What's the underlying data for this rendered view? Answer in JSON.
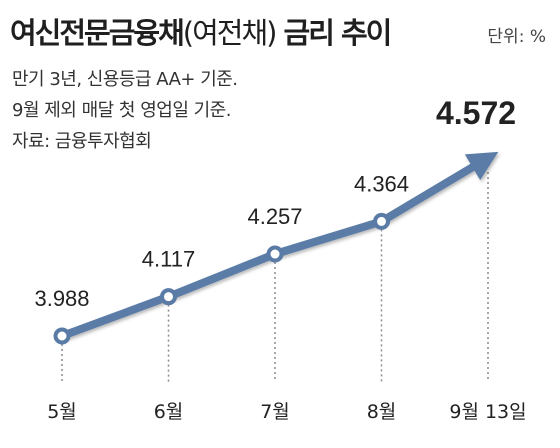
{
  "title": {
    "main": "여신전문금융채",
    "paren": "(여전채)",
    "rest": " 금리 추이"
  },
  "unit_label": "단위: %",
  "notes": [
    "만기 3년, 신용등급 AA+ 기준.",
    "9월 제외 매달 첫 영업일 기준.",
    "자료: 금융투자협회"
  ],
  "colors": {
    "line": "#5a7ba6",
    "marker_fill": "#ffffff",
    "text": "#222222",
    "guide": "#8a8a8a"
  },
  "chart_data": {
    "type": "line",
    "title": "여신전문금융채(여전채) 금리 추이",
    "categories": [
      "5월",
      "6월",
      "7월",
      "8월",
      "9월 13일"
    ],
    "values": [
      3.988,
      4.117,
      4.257,
      4.364,
      4.572
    ],
    "value_labels": [
      "3.988",
      "4.117",
      "4.257",
      "4.364",
      "4.572"
    ],
    "unit": "%",
    "last_point_style": "arrow",
    "highlight_last": true
  }
}
